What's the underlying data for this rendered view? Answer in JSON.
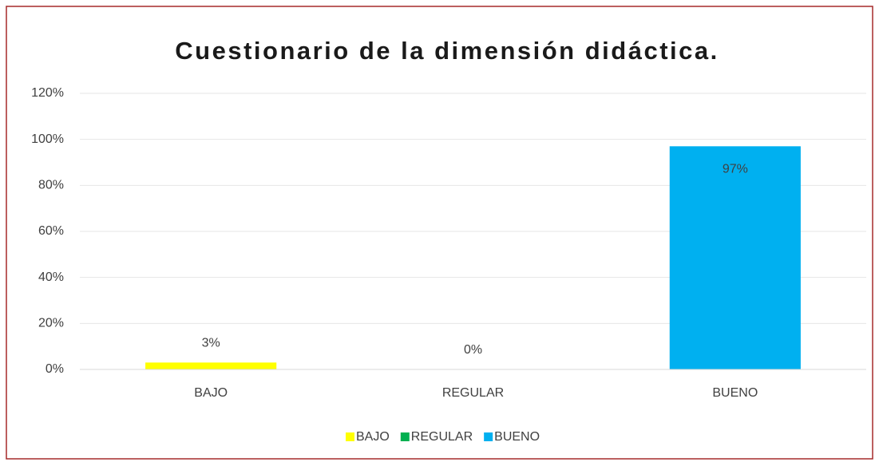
{
  "chart_data": {
    "type": "bar",
    "title": "Cuestionario de la dimensión didáctica.",
    "categories": [
      "BAJO",
      "REGULAR",
      "BUENO"
    ],
    "values": [
      3,
      0,
      97
    ],
    "value_labels": [
      "3%",
      "0%",
      "97%"
    ],
    "colors": [
      "#ffff00",
      "#00b050",
      "#00b0f0"
    ],
    "ylim": [
      0,
      120
    ],
    "yticks": [
      {
        "value": 0,
        "label": "0%"
      },
      {
        "value": 20,
        "label": "20%"
      },
      {
        "value": 40,
        "label": "40%"
      },
      {
        "value": 60,
        "label": "60%"
      },
      {
        "value": 80,
        "label": "80%"
      },
      {
        "value": 100,
        "label": "100%"
      },
      {
        "value": 120,
        "label": "120%"
      }
    ],
    "grid": true,
    "legend": "bottom"
  }
}
